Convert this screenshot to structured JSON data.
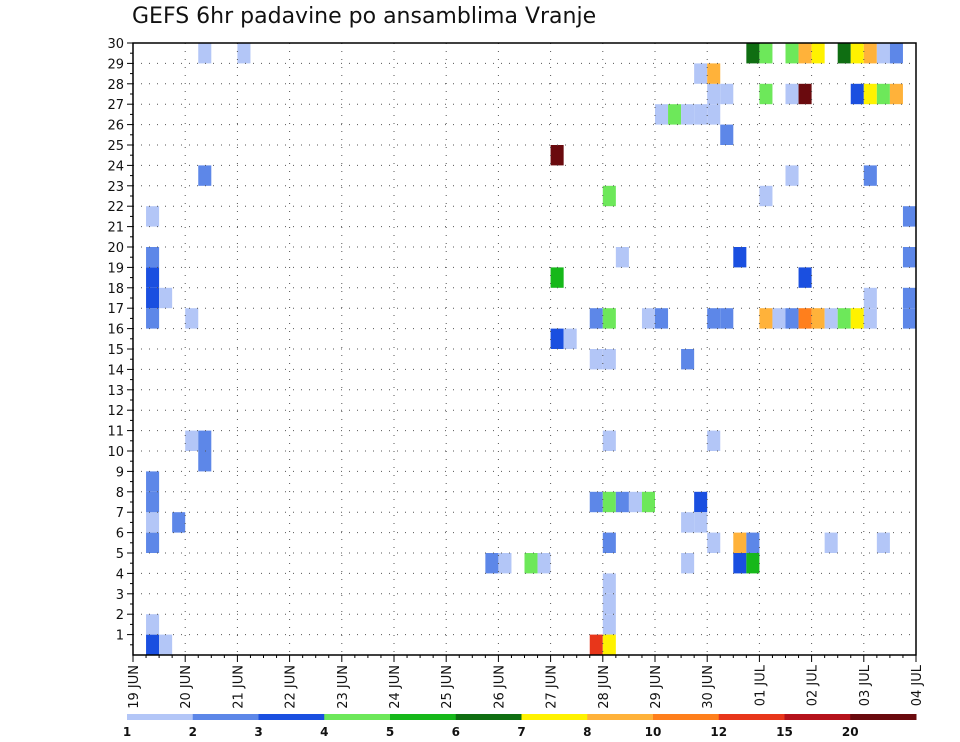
{
  "chart_data": {
    "type": "heatmap",
    "title": "GEFS 6hr padavine po ansamblima Vranje",
    "x_ticks": [
      "19 JUN",
      "20 JUN",
      "21 JUN",
      "22 JUN",
      "23 JUN",
      "24 JUN",
      "25 JUN",
      "26 JUN",
      "27 JUN",
      "28 JUN",
      "29 JUN",
      "30 JUN",
      "01 JUL",
      "02 JUL",
      "03 JUL",
      "04 JUL"
    ],
    "y_ticks": [
      1,
      2,
      3,
      4,
      5,
      6,
      7,
      8,
      9,
      10,
      11,
      12,
      13,
      14,
      15,
      16,
      17,
      18,
      19,
      20,
      21,
      22,
      23,
      24,
      25,
      26,
      27,
      28,
      29,
      30
    ],
    "y_range": [
      0,
      30
    ],
    "x_unit": "6-hour step since 19 JUN 00Z",
    "x_range": [
      0,
      60
    ],
    "grid": true,
    "legend_position": "bottom",
    "levels": [
      1,
      2,
      3,
      4,
      5,
      6,
      7,
      8,
      10,
      12,
      15,
      20
    ],
    "colors": [
      "#b3c6f7",
      "#5d87e8",
      "#1a4fe0",
      "#6de85a",
      "#16b81a",
      "#0f6e12",
      "#fff200",
      "#ffb23a",
      "#ff7f1c",
      "#e8361a",
      "#b5121b",
      "#6a0a0e"
    ],
    "cells": [
      [
        1,
        0,
        2
      ],
      [
        2,
        0,
        0
      ],
      [
        1,
        1,
        0
      ],
      [
        1,
        5,
        1
      ],
      [
        1,
        6,
        0
      ],
      [
        1,
        7,
        1
      ],
      [
        1,
        8,
        1
      ],
      [
        1,
        16,
        1
      ],
      [
        1,
        17,
        2
      ],
      [
        1,
        18,
        2
      ],
      [
        1,
        19,
        1
      ],
      [
        1,
        21,
        0
      ],
      [
        2,
        17,
        0
      ],
      [
        3,
        6,
        1
      ],
      [
        4,
        16,
        0
      ],
      [
        4,
        10,
        0
      ],
      [
        5,
        9,
        1
      ],
      [
        5,
        10,
        1
      ],
      [
        5,
        23,
        1
      ],
      [
        5,
        29,
        0
      ],
      [
        8,
        29,
        0
      ],
      [
        27,
        4,
        1
      ],
      [
        28,
        4,
        0
      ],
      [
        30,
        4,
        3
      ],
      [
        31,
        4,
        0
      ],
      [
        32,
        15,
        2
      ],
      [
        32,
        18,
        4
      ],
      [
        32,
        24,
        11
      ],
      [
        33,
        15,
        0
      ],
      [
        35,
        14,
        0
      ],
      [
        35,
        16,
        1
      ],
      [
        35,
        7,
        1
      ],
      [
        35,
        0,
        9
      ],
      [
        36,
        14,
        0
      ],
      [
        36,
        16,
        3
      ],
      [
        36,
        22,
        3
      ],
      [
        36,
        7,
        3
      ],
      [
        36,
        5,
        1
      ],
      [
        36,
        10,
        0
      ],
      [
        36,
        1,
        0
      ],
      [
        36,
        2,
        0
      ],
      [
        36,
        3,
        0
      ],
      [
        36,
        0,
        6
      ],
      [
        37,
        7,
        1
      ],
      [
        37,
        19,
        0
      ],
      [
        38,
        7,
        0
      ],
      [
        39,
        16,
        0
      ],
      [
        39,
        7,
        3
      ],
      [
        40,
        16,
        1
      ],
      [
        40,
        26,
        0
      ],
      [
        41,
        26,
        3
      ],
      [
        42,
        26,
        0
      ],
      [
        42,
        14,
        1
      ],
      [
        42,
        6,
        0
      ],
      [
        42,
        4,
        0
      ],
      [
        43,
        26,
        0
      ],
      [
        43,
        28,
        0
      ],
      [
        43,
        7,
        2
      ],
      [
        43,
        6,
        0
      ],
      [
        44,
        26,
        0
      ],
      [
        44,
        27,
        0
      ],
      [
        44,
        28,
        7
      ],
      [
        44,
        10,
        0
      ],
      [
        44,
        5,
        0
      ],
      [
        44,
        16,
        1
      ],
      [
        45,
        25,
        1
      ],
      [
        45,
        16,
        1
      ],
      [
        45,
        27,
        0
      ],
      [
        46,
        19,
        2
      ],
      [
        46,
        5,
        7
      ],
      [
        46,
        4,
        2
      ],
      [
        47,
        4,
        4
      ],
      [
        47,
        5,
        1
      ],
      [
        47,
        29,
        5
      ],
      [
        48,
        29,
        3
      ],
      [
        48,
        27,
        3
      ],
      [
        48,
        22,
        0
      ],
      [
        48,
        16,
        7
      ],
      [
        49,
        16,
        0
      ],
      [
        50,
        29,
        3
      ],
      [
        50,
        27,
        0
      ],
      [
        50,
        23,
        0
      ],
      [
        50,
        16,
        1
      ],
      [
        51,
        29,
        7
      ],
      [
        51,
        27,
        11
      ],
      [
        51,
        16,
        8
      ],
      [
        51,
        18,
        2
      ],
      [
        52,
        29,
        6
      ],
      [
        52,
        16,
        7
      ],
      [
        53,
        16,
        0
      ],
      [
        53,
        5,
        0
      ],
      [
        54,
        29,
        5
      ],
      [
        54,
        16,
        3
      ],
      [
        55,
        29,
        6
      ],
      [
        55,
        27,
        2
      ],
      [
        55,
        16,
        6
      ],
      [
        56,
        29,
        7
      ],
      [
        56,
        27,
        6
      ],
      [
        56,
        17,
        0
      ],
      [
        56,
        16,
        0
      ],
      [
        56,
        23,
        1
      ],
      [
        57,
        29,
        0
      ],
      [
        57,
        27,
        3
      ],
      [
        57,
        5,
        0
      ],
      [
        58,
        29,
        1
      ],
      [
        58,
        27,
        7
      ],
      [
        59,
        16,
        1
      ],
      [
        59,
        21,
        1
      ],
      [
        59,
        19,
        1
      ],
      [
        59,
        17,
        1
      ]
    ]
  }
}
